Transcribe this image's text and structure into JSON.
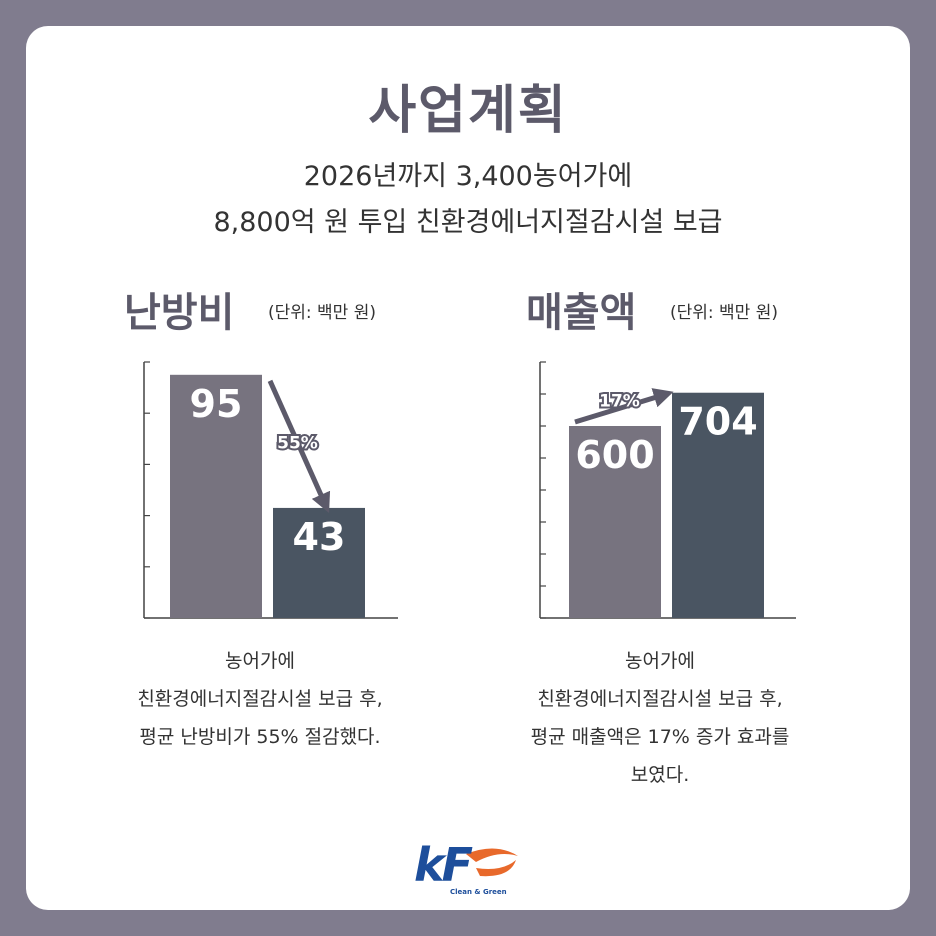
{
  "header": {
    "title": "사업계획",
    "subtitle_line1": "2026년까지 3,400농어가에",
    "subtitle_line2": "8,800억 원 투입 친환경에너지절감시설 보급"
  },
  "colors": {
    "before": "#77737f",
    "after": "#4a5562",
    "arrow": "#5c5a6a",
    "title": "#5c5a6a",
    "background": "#807c8e"
  },
  "chart_data": [
    {
      "type": "bar",
      "title": "난방비",
      "unit": "(단위: 백만 원)",
      "categories": [
        "",
        ""
      ],
      "values": [
        95,
        43
      ],
      "value_labels": [
        "95",
        "43"
      ],
      "change_label": "55%",
      "change_direction": "down",
      "ylim": [
        0,
        100
      ],
      "grid": false,
      "caption": [
        "농어가에",
        "친환경에너지절감시설 보급 후,",
        "평균 난방비가 55% 절감했다."
      ]
    },
    {
      "type": "bar",
      "title": "매출액",
      "unit": "(단위: 백만 원)",
      "categories": [
        "",
        ""
      ],
      "values": [
        600,
        704
      ],
      "value_labels": [
        "600",
        "704"
      ],
      "change_label": "17%",
      "change_direction": "up",
      "ylim": [
        0,
        800
      ],
      "grid": false,
      "caption": [
        "농어가에",
        "친환경에너지절감시설 보급 후,",
        "평균 매출액은 17% 증가 효과를",
        "보였다."
      ]
    }
  ],
  "logo": {
    "text": "kF",
    "tagline": "Clean & Green",
    "color": "#1d4e9b",
    "accent": "#e8692b"
  }
}
